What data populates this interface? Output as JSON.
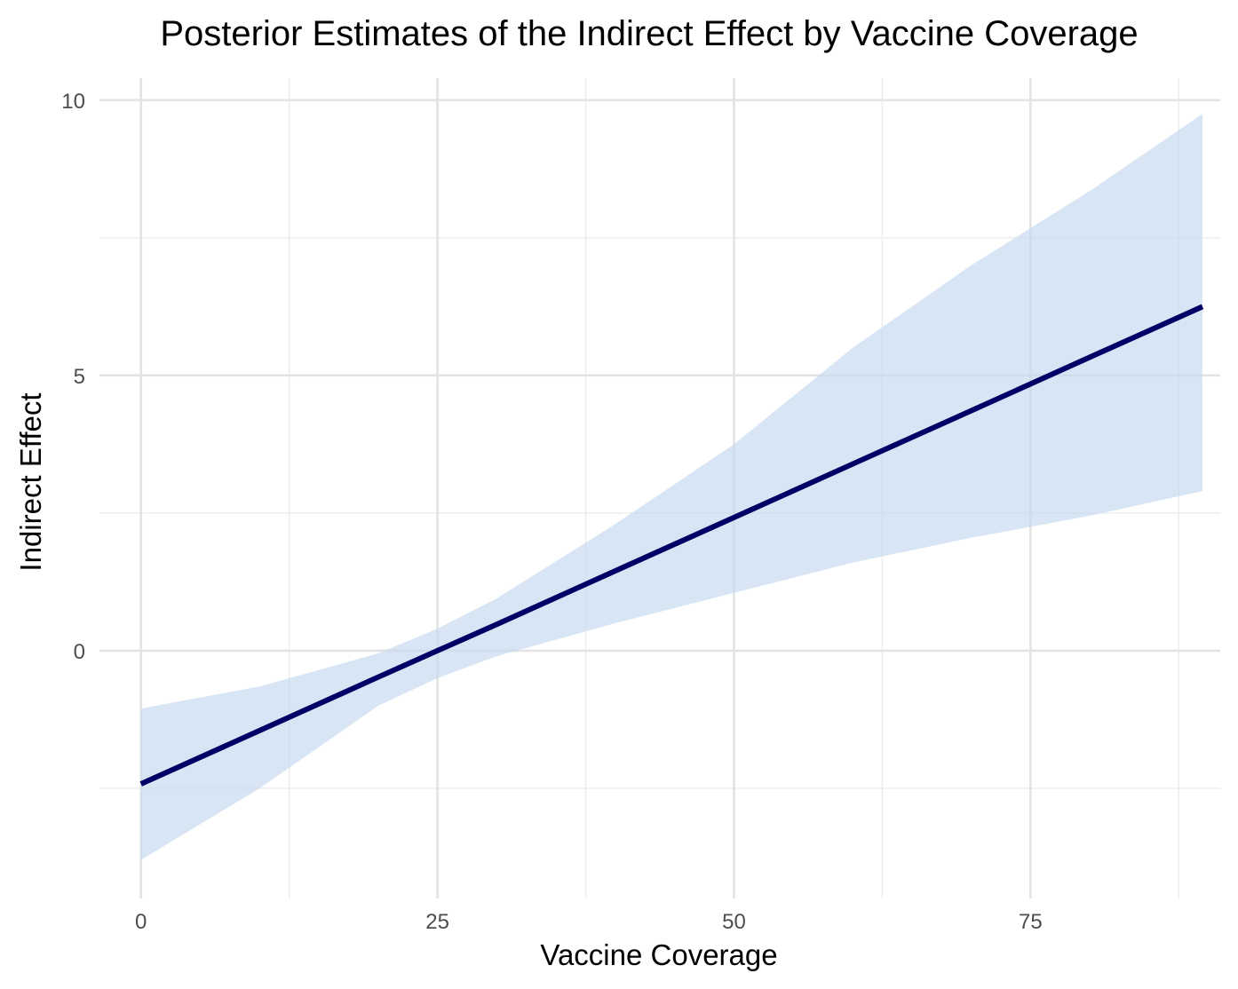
{
  "chart_data": {
    "type": "line",
    "title": "Posterior Estimates of the Indirect Effect by Vaccine Coverage",
    "xlabel": "Vaccine Coverage",
    "ylabel": "Indirect Effect",
    "xlim": [
      -3.5,
      91
    ],
    "ylim": [
      -4.5,
      10.4
    ],
    "x_ticks": [
      0,
      25,
      50,
      75
    ],
    "x_tick_labels": [
      "0",
      "25",
      "50",
      "75"
    ],
    "x_minor_ticks": [
      12.5,
      37.5,
      62.5,
      87.5
    ],
    "y_ticks": [
      0,
      5,
      10
    ],
    "y_tick_labels": [
      "0",
      "5",
      "10"
    ],
    "y_minor_ticks": [
      -2.5,
      2.5,
      7.5
    ],
    "grid": true,
    "legend": "none",
    "colors": {
      "line": "#000066",
      "ribbon": "#c6d9ef"
    },
    "series": [
      {
        "x": [
          0,
          10,
          20,
          25,
          30,
          40,
          50,
          60,
          70,
          80,
          89.5
        ],
        "estimate": [
          -2.42,
          -1.45,
          -0.48,
          0.0,
          0.48,
          1.45,
          2.42,
          3.39,
          4.36,
          5.33,
          6.25
        ],
        "lower": [
          -3.8,
          -2.5,
          -1.0,
          -0.5,
          -0.1,
          0.5,
          1.05,
          1.6,
          2.05,
          2.45,
          2.9
        ],
        "upper": [
          -1.05,
          -0.65,
          -0.05,
          0.4,
          0.95,
          2.3,
          3.75,
          5.5,
          7.0,
          8.35,
          9.75
        ]
      }
    ]
  }
}
